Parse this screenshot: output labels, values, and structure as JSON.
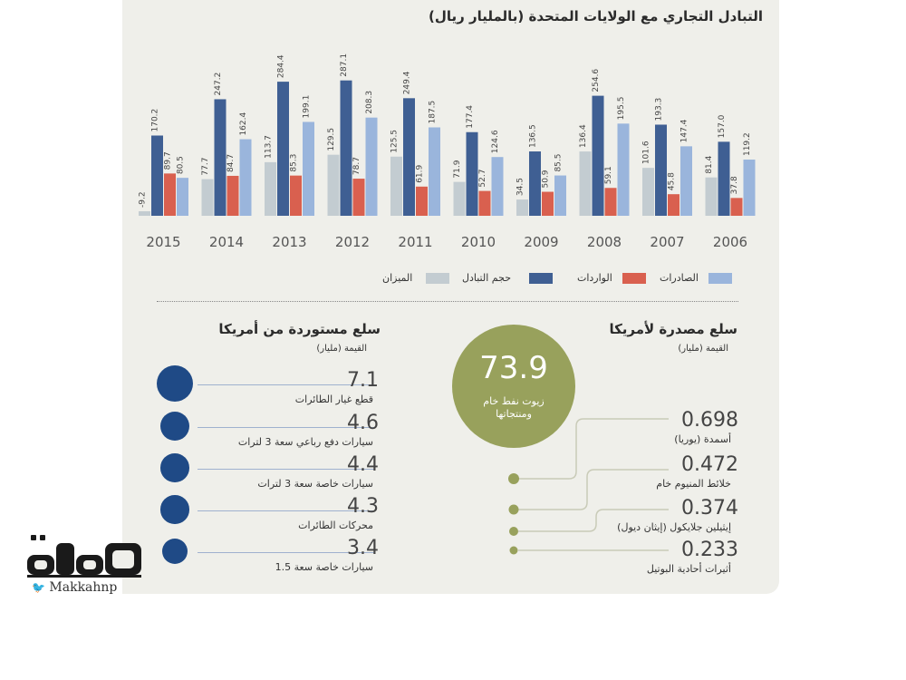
{
  "chart_data": {
    "type": "bar",
    "title": "التبادل التجاري مع الولايات المتحدة (بالمليار ريال)",
    "categories": [
      "2015",
      "2014",
      "2013",
      "2012",
      "2011",
      "2010",
      "2009",
      "2008",
      "2007",
      "2006"
    ],
    "series": [
      {
        "name": "الميزان",
        "color": "#c3ccd1",
        "values": [
          -9.2,
          77.7,
          113.7,
          129.5,
          125.5,
          71.9,
          34.5,
          136.4,
          101.6,
          81.4
        ]
      },
      {
        "name": "حجم التبادل",
        "color": "#3f5f93",
        "values": [
          170.2,
          247.2,
          284.4,
          287.1,
          249.4,
          177.4,
          136.5,
          254.6,
          193.3,
          157.0
        ]
      },
      {
        "name": "الواردات",
        "color": "#d9604f",
        "values": [
          89.7,
          84.7,
          85.3,
          78.7,
          61.9,
          52.7,
          50.9,
          59.1,
          45.8,
          37.8
        ]
      },
      {
        "name": "الصادرات",
        "color": "#9ab5dc",
        "values": [
          80.5,
          162.4,
          199.1,
          208.3,
          187.5,
          124.6,
          85.5,
          195.5,
          147.4,
          119.2
        ]
      }
    ],
    "value_labels": [
      [
        "-9.2",
        "170.2",
        "89.7",
        "80.5"
      ],
      [
        "77.7",
        "247.2",
        "84.7",
        "162.4"
      ],
      [
        "113.7",
        "284.4",
        "85.3",
        "199.1"
      ],
      [
        "129.5",
        "287.1",
        "78.7",
        "208.3"
      ],
      [
        "125.5",
        "249.4",
        "61.9",
        "187.5"
      ],
      [
        "71.9",
        "177.4",
        "52.7",
        "124.6"
      ],
      [
        "34.5",
        "136.5",
        "50.9",
        "85.5"
      ],
      [
        "136.4",
        "254.6",
        "59.1",
        "195.5"
      ],
      [
        "101.6",
        "193.3",
        "45.8",
        "147.4"
      ],
      [
        "81.4",
        "157.0",
        "37.8",
        "119.2"
      ]
    ],
    "ylim": [
      -10,
      300
    ],
    "xlabel": "",
    "ylabel": ""
  },
  "legend": {
    "exports": "الصادرات",
    "imports": "الواردات",
    "volume": "حجم التبادل",
    "balance": "الميزان"
  },
  "imports_section": {
    "title": "سلع مستوردة من أمريكا",
    "subtitle": "القيمة (مليار)",
    "items": [
      {
        "value": "7.1",
        "label": "قطع غيار الطائرات",
        "num": 7.1
      },
      {
        "value": "4.6",
        "label": "سيارات دفع رباعي سعة 3 لترات",
        "num": 4.6
      },
      {
        "value": "4.4",
        "label": "سيارات خاصة سعة 3 لترات",
        "num": 4.4
      },
      {
        "value": "4.3",
        "label": "محركات الطائرات",
        "num": 4.3
      },
      {
        "value": "3.4",
        "label": "سيارات خاصة سعة 1.5",
        "num": 3.4
      }
    ]
  },
  "exports_section": {
    "title": "سلع مصدرة لأمريكا",
    "subtitle": "القيمة (مليار)",
    "top": {
      "value": "73.9",
      "label_line1": "زيوت نفط خام",
      "label_line2": "ومنتجاتها"
    },
    "items": [
      {
        "value": "0.698",
        "label": "أسمدة (يوريا)"
      },
      {
        "value": "0.472",
        "label": "خلائط المنيوم خام"
      },
      {
        "value": "0.374",
        "label": "إيثيلين جلايكول (إيثان ديول)"
      },
      {
        "value": "0.233",
        "label": "أثيرات أحادية البوتيل"
      }
    ]
  },
  "brand": {
    "logo_text": "مكة",
    "handle": "Makkahnp",
    "accent": "#1f4a86"
  }
}
